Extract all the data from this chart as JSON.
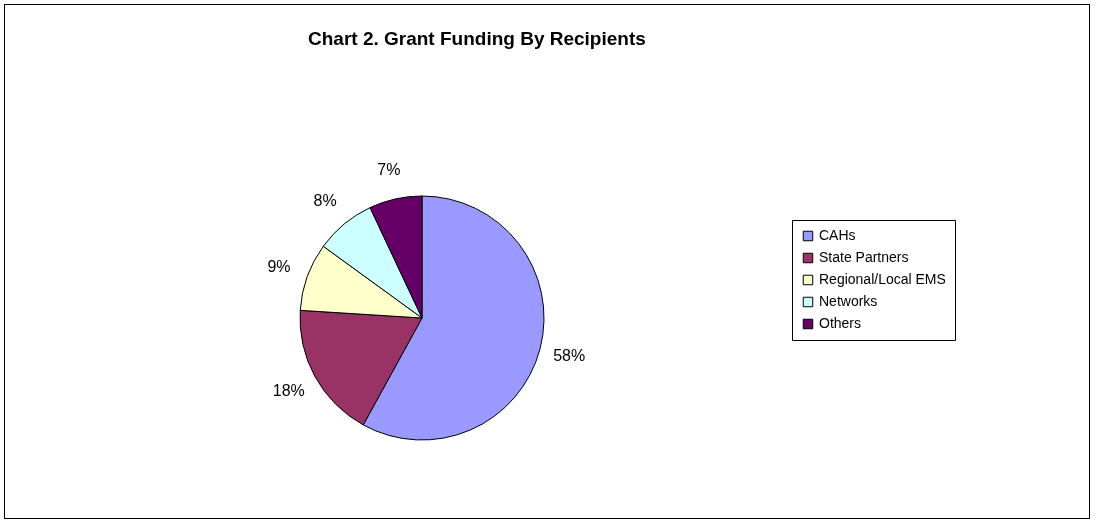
{
  "chart_data": {
    "type": "pie",
    "title": "Chart 2. Grant Funding By Recipients",
    "categories": [
      "CAHs",
      "State Partners",
      "Regional/Local EMS",
      "Networks",
      "Others"
    ],
    "values": [
      58,
      18,
      9,
      8,
      7
    ],
    "colors": [
      "#9999ff",
      "#993366",
      "#ffffcc",
      "#ccffff",
      "#660066"
    ],
    "value_labels": [
      "58%",
      "18%",
      "9%",
      "8%",
      "7%"
    ],
    "legend": "right"
  }
}
